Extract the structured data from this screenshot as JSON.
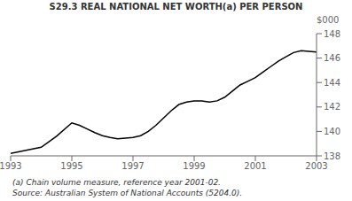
{
  "chart_data": {
    "type": "line",
    "title": "S29.3   REAL NATIONAL NET WORTH(a) PER PERSON",
    "ylabel": "$000",
    "annotations": [
      "(a) Chain volume measure, reference year 2001-02.",
      "Source: Australian System of National Accounts (5204.0)."
    ],
    "x": [
      1993.0,
      1993.5,
      1994.0,
      1994.5,
      1995.0,
      1995.25,
      1995.5,
      1995.75,
      1996.0,
      1996.25,
      1996.5,
      1996.75,
      1997.0,
      1997.25,
      1997.5,
      1997.75,
      1998.0,
      1998.25,
      1998.5,
      1998.75,
      1999.0,
      1999.25,
      1999.5,
      1999.75,
      2000.0,
      2000.25,
      2000.5,
      2000.75,
      2001.0,
      2001.25,
      2001.5,
      2001.75,
      2002.0,
      2002.25,
      2002.5,
      2002.75,
      2003.0
    ],
    "values": [
      138.2,
      138.45,
      138.7,
      139.6,
      140.7,
      140.5,
      140.2,
      139.9,
      139.65,
      139.5,
      139.4,
      139.45,
      139.5,
      139.65,
      140.0,
      140.5,
      141.1,
      141.7,
      142.2,
      142.4,
      142.5,
      142.5,
      142.4,
      142.5,
      142.8,
      143.3,
      143.8,
      144.1,
      144.4,
      144.85,
      145.3,
      145.75,
      146.1,
      146.45,
      146.6,
      146.55,
      146.5
    ],
    "xlim": [
      1993,
      2003
    ],
    "ylim": [
      138,
      148
    ],
    "xticks": [
      1993,
      1995,
      1997,
      1999,
      2001,
      2003
    ],
    "yticks": [
      138,
      140,
      142,
      144,
      146,
      148
    ],
    "color": "#000000",
    "grid": false
  }
}
